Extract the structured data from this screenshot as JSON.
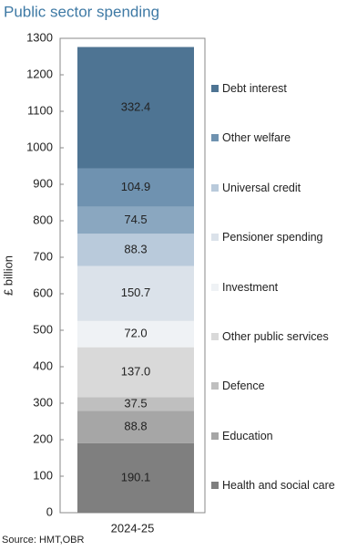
{
  "chart_data": {
    "type": "stacked_bar",
    "title": "Public sector spending",
    "y_label": "£ billion",
    "source": "Source: HMT,OBR",
    "categories": [
      "2024-25"
    ],
    "series": [
      {
        "name": "Health and social care",
        "color": "#7f7f7f",
        "values": [
          190.1
        ]
      },
      {
        "name": "Education",
        "color": "#a6a6a6",
        "values": [
          88.8
        ]
      },
      {
        "name": "Defence",
        "color": "#bfbfbf",
        "values": [
          37.5
        ]
      },
      {
        "name": "Other public services",
        "color": "#d9d9d9",
        "values": [
          137.0
        ],
        "value_labels": [
          "137.0"
        ]
      },
      {
        "name": "Investment",
        "color": "#eff2f5",
        "values": [
          72.0
        ],
        "value_labels": [
          "72.0"
        ]
      },
      {
        "name": "Pensioner spending",
        "color": "#dbe2ea",
        "values": [
          150.7
        ]
      },
      {
        "name": "Universal credit",
        "color": "#b9cadb",
        "values": [
          88.3
        ]
      },
      {
        "color": "#8aa7c0",
        "values": [
          74.5
        ]
      },
      {
        "name": "Other welfare",
        "color": "#6f92b0",
        "values": [
          104.9
        ]
      },
      {
        "name": "Debt interest",
        "color": "#4e7493",
        "values": [
          332.4
        ]
      }
    ],
    "ylim": [
      0,
      1300
    ],
    "yticks": [
      0,
      100,
      200,
      300,
      400,
      500,
      600,
      700,
      800,
      900,
      1000,
      1100,
      1200,
      1300
    ]
  }
}
